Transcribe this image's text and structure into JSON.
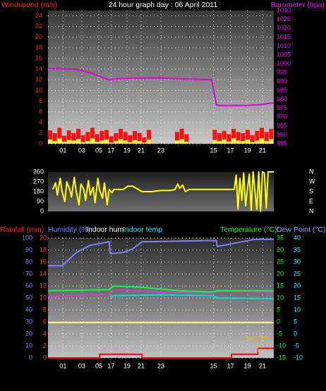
{
  "chart_data": [
    {
      "type": "bar",
      "title": "24 hour graph day : 06 April 2011",
      "y_label": "Windspeed (m/s)",
      "y2_label": "Barometer (hpa)",
      "label_colors": {
        "y": "#ff2020",
        "y2": "#ff00ff",
        "title": "#ffffff"
      },
      "axis_colors": {
        "y": "#ff2020",
        "y2": "#ff00ff"
      },
      "grid": true,
      "xlim": [
        0,
        24
      ],
      "xticks": [
        {
          "value": 1.6,
          "label": "01"
        },
        {
          "value": 3.6,
          "label": "03"
        },
        {
          "value": 5.4,
          "label": "05"
        },
        {
          "value": 6.7,
          "label": "17"
        },
        {
          "value": 8.4,
          "label": "19"
        },
        {
          "value": 9.9,
          "label": "21"
        },
        {
          "value": 12,
          "label": "23"
        },
        {
          "value": 17.6,
          "label": "15"
        },
        {
          "value": 19.4,
          "label": "17"
        },
        {
          "value": 21.2,
          "label": "19"
        },
        {
          "value": 22.8,
          "label": "21"
        }
      ],
      "ylim": [
        0,
        25
      ],
      "yticks": [
        0,
        2,
        4,
        6,
        8,
        10,
        12,
        14,
        16,
        18,
        20,
        22,
        24
      ],
      "y2lim": [
        955,
        1030
      ],
      "y2ticks": [
        955,
        960,
        965,
        970,
        975,
        980,
        985,
        990,
        995,
        1000,
        1005,
        1010,
        1015,
        1020,
        1025,
        1030
      ],
      "series": [
        {
          "mark": "bar",
          "color": "#ff1010",
          "x": [
            0,
            0.5,
            1,
            1.5,
            2,
            2.5,
            3,
            3.5,
            4,
            4.5,
            5,
            5.5,
            6,
            6.5,
            7,
            7.5,
            8,
            8.5,
            9,
            9.5,
            10,
            10.5,
            11,
            11.5,
            12,
            12.5,
            13,
            13.5,
            14,
            14.5,
            15,
            15.5,
            16,
            16.5,
            17,
            17.5,
            18,
            18.5,
            19,
            19.5,
            20,
            20.5,
            21,
            21.5,
            22,
            22.5,
            23,
            23.5
          ],
          "values": [
            2.5,
            2,
            3,
            1.5,
            2.5,
            2,
            2.8,
            1.6,
            2.2,
            3,
            1.8,
            2.4,
            2.6,
            1.4,
            2,
            2.8,
            2.2,
            1.6,
            2.4,
            2,
            1.2,
            2.6,
            null,
            null,
            null,
            null,
            null,
            2.2,
            2.8,
            1.8,
            null,
            null,
            null,
            null,
            null,
            2.6,
            2,
            2.4,
            1.8,
            2.8,
            2.2,
            2,
            2.6,
            1.6,
            2.4,
            3,
            2.2,
            2.8
          ]
        },
        {
          "mark": "bar",
          "color": "#ffff40",
          "x": [
            0,
            0.5,
            1,
            1.5,
            2,
            2.5,
            3,
            3.5,
            4,
            4.5,
            5,
            5.5,
            6,
            6.5,
            7,
            7.5,
            8,
            8.5,
            9,
            9.5,
            10,
            10.5,
            11,
            11.5,
            12,
            12.5,
            13,
            13.5,
            14,
            14.5,
            15,
            15.5,
            16,
            16.5,
            17,
            17.5,
            18,
            18.5,
            19,
            19.5,
            20,
            20.5,
            21,
            21.5,
            22,
            22.5,
            23,
            23.5
          ],
          "values": [
            0.8,
            0.5,
            1,
            0.4,
            0.7,
            0.6,
            0.9,
            0.3,
            0.5,
            1,
            0.4,
            0.6,
            0.8,
            0.2,
            0.5,
            0.9,
            0.6,
            0.3,
            0.7,
            0.5,
            0.2,
            0.8,
            null,
            null,
            null,
            null,
            null,
            0.6,
            0.9,
            0.4,
            null,
            null,
            null,
            null,
            null,
            0.7,
            0.5,
            0.8,
            0.4,
            1,
            0.6,
            0.5,
            0.8,
            0.3,
            0.6,
            1,
            0.5,
            0.9
          ]
        },
        {
          "axis": "y2",
          "color": "#e000e0",
          "x": [
            0,
            3,
            4.5,
            5.5,
            6.5,
            7,
            9,
            12,
            17.4,
            17.9,
            18.2,
            21,
            22.5,
            24
          ],
          "values": [
            997.5,
            997,
            995,
            993,
            991,
            991.5,
            992,
            992,
            991,
            977,
            976.5,
            976.5,
            977,
            978
          ]
        }
      ]
    },
    {
      "type": "line",
      "axis_colors": {
        "y": "#ffffff",
        "y2": "#ffffff"
      },
      "xlim": [
        0,
        24
      ],
      "ylim": [
        0,
        360
      ],
      "yticks": [
        0,
        90,
        180,
        270,
        360
      ],
      "y2lim": [
        0,
        360
      ],
      "y2ticks": [
        {
          "value": 0,
          "label": "N"
        },
        {
          "value": 90,
          "label": "E"
        },
        {
          "value": 180,
          "label": "S"
        },
        {
          "value": 270,
          "label": "W"
        },
        {
          "value": 360,
          "label": "N"
        }
      ],
      "series": [
        {
          "color": "#ffff00",
          "x": [
            0.5,
            0.8,
            1.0,
            1.3,
            1.5,
            1.8,
            2.0,
            2.3,
            2.5,
            2.8,
            3.0,
            3.3,
            3.5,
            3.8,
            4.0,
            4.3,
            4.5,
            4.8,
            5.0,
            5.3,
            5.5,
            5.8,
            6.0,
            6.3,
            6.5,
            6.8,
            7.0,
            7.5,
            8.0,
            8.5,
            9.0,
            10,
            11,
            12,
            13,
            13.5,
            13.8,
            14,
            14.3,
            14.6,
            15,
            16,
            17,
            18,
            19.8,
            20,
            20.2,
            20.4,
            20.6,
            20.8,
            21,
            21.2,
            21.4,
            21.6,
            21.8,
            22,
            22.2,
            22.4,
            22.6,
            22.8,
            23,
            23.2,
            23.4,
            23.6,
            23.8,
            24
          ],
          "values": [
            200,
            260,
            150,
            300,
            180,
            90,
            270,
            200,
            130,
            310,
            180,
            60,
            250,
            200,
            100,
            280,
            150,
            220,
            80,
            300,
            190,
            120,
            260,
            60,
            200,
            170,
            200,
            200,
            200,
            230,
            230,
            180,
            180,
            190,
            190,
            200,
            250,
            210,
            240,
            180,
            200,
            200,
            200,
            200,
            200,
            330,
            20,
            300,
            100,
            350,
            50,
            200,
            340,
            10,
            360,
            180,
            20,
            360,
            0,
            360,
            350,
            30,
            360,
            360,
            360,
            360
          ]
        }
      ]
    },
    {
      "type": "line",
      "grid": true,
      "axis_colors": {
        "y": "#8080ff",
        "rain": "#ff4040",
        "y2": "#00ff40",
        "y3": "#00ffff"
      },
      "xlim": [
        0,
        24
      ],
      "xticks": [
        {
          "value": 1.6,
          "label": "01"
        },
        {
          "value": 3.6,
          "label": "03"
        },
        {
          "value": 5.4,
          "label": "05"
        },
        {
          "value": 6.7,
          "label": "17"
        },
        {
          "value": 8.4,
          "label": "19"
        },
        {
          "value": 9.9,
          "label": "21"
        },
        {
          "value": 12,
          "label": "23"
        },
        {
          "value": 17.6,
          "label": "15"
        },
        {
          "value": 19.4,
          "label": "17"
        },
        {
          "value": 21.2,
          "label": "19"
        },
        {
          "value": 22.8,
          "label": "21"
        }
      ],
      "ylim": [
        0,
        100
      ],
      "yticks": [
        0,
        10,
        20,
        30,
        40,
        50,
        60,
        70,
        80,
        90,
        100
      ],
      "rainlim": [
        0,
        20
      ],
      "rainticks": [
        0,
        2,
        4,
        6,
        8,
        10,
        12,
        14,
        16,
        18,
        20
      ],
      "y2lim": [
        -15,
        35
      ],
      "y2ticks": [
        -15,
        -10,
        -5,
        0,
        5,
        10,
        15,
        20,
        25,
        30,
        35
      ],
      "y3lim": [
        -10,
        40
      ],
      "y3ticks": [
        -10,
        -5,
        0,
        5,
        10,
        15,
        20,
        25,
        30,
        35,
        40
      ],
      "series": [
        {
          "name": "Rainfall (mm)",
          "axis": "rain",
          "color": "#ff0000",
          "label_color": "#ff2020",
          "x": [
            0,
            5.5,
            5.5,
            10,
            10,
            19.5,
            19.5,
            22.3,
            22.3,
            24
          ],
          "values": [
            0,
            0,
            0.6,
            0.6,
            0,
            0,
            0.6,
            0.6,
            1.6,
            1.6
          ]
        },
        {
          "name": "Humidity (%)",
          "color": "#8080ff",
          "label_color": "#8080ff",
          "x": [
            0,
            1.5,
            3,
            4.5,
            6.5,
            6.6,
            8,
            9,
            10,
            17.9,
            18,
            20,
            22,
            24
          ],
          "values": [
            77,
            77,
            88,
            94,
            97,
            87,
            88,
            91,
            97,
            98,
            93,
            96,
            99,
            99
          ]
        },
        {
          "name": "Indoor hum",
          "color": "#d040d0",
          "label_color": "#ffffff",
          "x": [
            0,
            3,
            5,
            6.5,
            7,
            12,
            17.5,
            18,
            24
          ],
          "values": [
            51,
            52,
            53,
            53,
            57,
            55,
            54,
            56,
            55
          ]
        },
        {
          "name": "Indoor temp",
          "axis": "y2",
          "color": "#00e0e0",
          "label_color": "#00ffff",
          "x": [
            6.6,
            7,
            12,
            17.5,
            18,
            24
          ],
          "values": [
            10.5,
            11,
            11.3,
            11,
            10,
            9.7
          ]
        },
        {
          "name": "Temperature (°C)",
          "axis": "y2",
          "color": "#00ff40",
          "label_color": "#00ff40",
          "x": [
            0,
            6.5,
            7,
            10,
            14,
            17.5,
            18,
            24
          ],
          "values": [
            13,
            13.5,
            15,
            14.5,
            13,
            12.5,
            13,
            13
          ]
        },
        {
          "name": "Dew Point (°C)",
          "axis": "y3",
          "color": "#ffff80",
          "label_color": "#a0a0ff",
          "x": [
            0,
            24
          ],
          "values": [
            4.8,
            4.8
          ]
        }
      ],
      "annotations": [
        {
          "text": "Sun Set",
          "x": 22.3,
          "color": "#e0c000"
        }
      ]
    }
  ]
}
